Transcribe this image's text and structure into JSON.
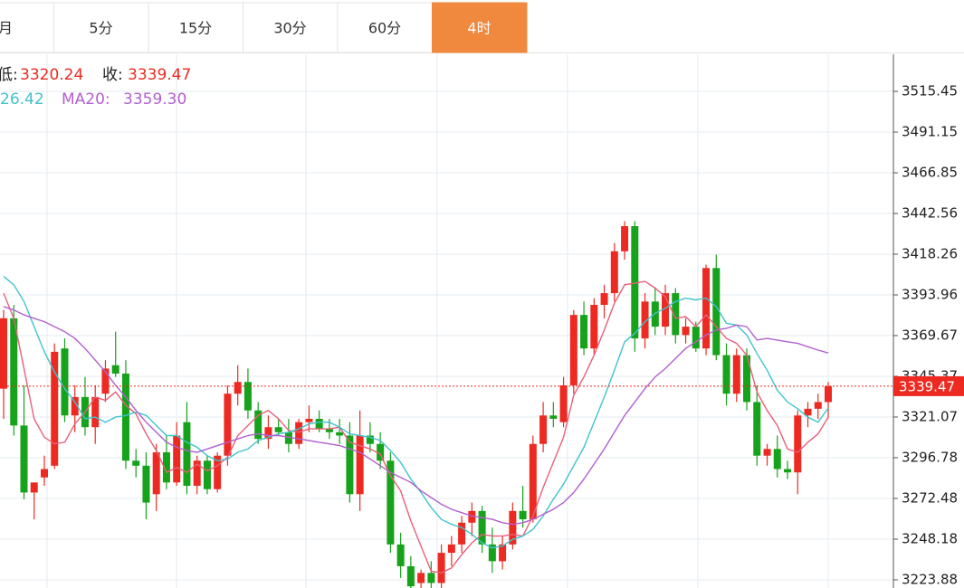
{
  "tabs": [
    "月",
    "5分",
    "15分",
    "30分",
    "60分",
    "4时"
  ],
  "active_tab": 5,
  "info": [
    {
      "label": "低:"
    },
    {
      "label": "收:"
    }
  ],
  "chart_data": {
    "type": "candlestick",
    "up_color": "#ec2a22",
    "down_color": "#16a21a",
    "opens": [
      3338,
      3380,
      3316,
      3276,
      3285,
      3292,
      3362,
      3322,
      3333,
      3315,
      3335,
      3352,
      3347,
      3295,
      3292,
      3275,
      3300,
      3282,
      3318,
      3280,
      3295,
      3278,
      3298,
      3335,
      3342,
      3325,
      3308,
      3315,
      3312,
      3305,
      3318,
      3320,
      3314,
      3312,
      3310,
      3275,
      3310,
      3305,
      3295,
      3245,
      3232,
      3222,
      3228,
      3222,
      3240,
      3245,
      3258,
      3265,
      3245,
      3235,
      3245,
      3265,
      3260,
      3305,
      3322,
      3318,
      3340,
      3382,
      3362,
      3388,
      3395,
      3420,
      3435,
      3368,
      3390,
      3375,
      3395,
      3370,
      3375,
      3362,
      3410,
      3358,
      3335,
      3358,
      3330,
      3298,
      3302,
      3290,
      3288,
      3322,
      3326,
      3330
    ],
    "highs": [
      3385,
      3388,
      3340,
      3282,
      3298,
      3365,
      3368,
      3340,
      3345,
      3340,
      3355,
      3372,
      3355,
      3302,
      3300,
      3305,
      3310,
      3318,
      3330,
      3298,
      3298,
      3300,
      3340,
      3352,
      3350,
      3330,
      3322,
      3320,
      3320,
      3320,
      3328,
      3325,
      3320,
      3320,
      3318,
      3325,
      3318,
      3312,
      3300,
      3252,
      3238,
      3230,
      3235,
      3245,
      3250,
      3262,
      3270,
      3268,
      3255,
      3250,
      3270,
      3280,
      3310,
      3330,
      3330,
      3345,
      3385,
      3390,
      3392,
      3400,
      3425,
      3438,
      3438,
      3395,
      3398,
      3400,
      3398,
      3380,
      3378,
      3412,
      3418,
      3365,
      3362,
      3362,
      3340,
      3305,
      3310,
      3295,
      3325,
      3330,
      3335,
      3342
    ],
    "lows": [
      3320,
      3310,
      3272,
      3260,
      3280,
      3290,
      3318,
      3312,
      3310,
      3305,
      3330,
      3345,
      3290,
      3285,
      3260,
      3265,
      3278,
      3280,
      3275,
      3275,
      3275,
      3276,
      3292,
      3328,
      3320,
      3305,
      3302,
      3310,
      3300,
      3302,
      3312,
      3312,
      3308,
      3305,
      3270,
      3265,
      3300,
      3290,
      3240,
      3225,
      3215,
      3215,
      3215,
      3218,
      3232,
      3240,
      3250,
      3240,
      3228,
      3230,
      3242,
      3255,
      3258,
      3300,
      3315,
      3315,
      3335,
      3358,
      3358,
      3380,
      3390,
      3415,
      3360,
      3362,
      3370,
      3370,
      3365,
      3365,
      3360,
      3358,
      3355,
      3328,
      3330,
      3325,
      3292,
      3292,
      3285,
      3284,
      3275,
      3315,
      3320,
      3320.24
    ],
    "closes": [
      3380,
      3316,
      3276,
      3282,
      3290,
      3360,
      3322,
      3333,
      3315,
      3333,
      3350,
      3347,
      3295,
      3292,
      3270,
      3300,
      3282,
      3310,
      3280,
      3295,
      3278,
      3298,
      3335,
      3342,
      3325,
      3308,
      3315,
      3312,
      3305,
      3318,
      3320,
      3314,
      3312,
      3310,
      3275,
      3310,
      3305,
      3295,
      3245,
      3232,
      3220,
      3228,
      3222,
      3240,
      3245,
      3258,
      3265,
      3245,
      3235,
      3245,
      3265,
      3260,
      3305,
      3322,
      3320,
      3340,
      3382,
      3362,
      3388,
      3395,
      3420,
      3435,
      3368,
      3390,
      3375,
      3395,
      3370,
      3375,
      3362,
      3410,
      3358,
      3335,
      3358,
      3330,
      3298,
      3302,
      3290,
      3288,
      3322,
      3326,
      3330,
      3339.47
    ],
    "series": [
      {
        "color": "#e8607a",
        "values": [
          3395,
          3380,
          3350,
          3320,
          3309,
          3305,
          3306,
          3317,
          3324,
          3333,
          3331,
          3336,
          3328,
          3323,
          3311,
          3301,
          3288,
          3291,
          3288,
          3293,
          3289,
          3292,
          3297,
          3310,
          3316,
          3322,
          3325,
          3320,
          3313,
          3312,
          3314,
          3314,
          3314,
          3315,
          3306,
          3304,
          3302,
          3299,
          3286,
          3277,
          3259,
          3244,
          3229,
          3228,
          3231,
          3239,
          3246,
          3251,
          3250,
          3250,
          3251,
          3250,
          3262,
          3279,
          3294,
          3309,
          3334,
          3345,
          3358,
          3373,
          3389,
          3400,
          3401,
          3402,
          3398,
          3393,
          3380,
          3381,
          3375,
          3382,
          3375,
          3368,
          3365,
          3358,
          3336,
          3325,
          3316,
          3302,
          3300,
          3306,
          3311,
          3321
        ]
      },
      {
        "color": "#3fc3cc",
        "value_label": "26.42",
        "values": [
          3405,
          3400,
          3390,
          3375,
          3360,
          3348,
          3338,
          3330,
          3320,
          3321,
          3318,
          3321,
          3322,
          3324,
          3322,
          3316,
          3310,
          3310,
          3306,
          3303,
          3298,
          3295,
          3296,
          3300,
          3302,
          3307,
          3309,
          3311,
          3312,
          3314,
          3317,
          3318,
          3318,
          3315,
          3311,
          3310,
          3309,
          3307,
          3301,
          3294,
          3284,
          3276,
          3267,
          3260,
          3257,
          3255,
          3251,
          3246,
          3243,
          3244,
          3248,
          3250,
          3254,
          3262,
          3272,
          3281,
          3292,
          3303,
          3318,
          3333,
          3349,
          3366,
          3371,
          3378,
          3383,
          3386,
          3390,
          3392,
          3391,
          3392,
          3387,
          3377,
          3376,
          3370,
          3359,
          3349,
          3337,
          3330,
          3326,
          3321,
          3318,
          3326.42
        ]
      },
      {
        "name": "MA20:",
        "color": "#b25fcf",
        "value_label": "3359.30",
        "values": [
          3387,
          3385,
          3382,
          3380,
          3378,
          3375,
          3372,
          3368,
          3362,
          3355,
          3348,
          3340,
          3333,
          3325,
          3318,
          3312,
          3306,
          3303,
          3301,
          3300,
          3302,
          3304,
          3306,
          3308,
          3310,
          3311,
          3310,
          3310,
          3309,
          3308,
          3307,
          3306,
          3305,
          3304,
          3302,
          3300,
          3296,
          3292,
          3288,
          3285,
          3282,
          3277,
          3273,
          3269,
          3266,
          3264,
          3262,
          3261,
          3260,
          3258,
          3257,
          3258,
          3260,
          3263,
          3266,
          3270,
          3276,
          3284,
          3293,
          3302,
          3312,
          3322,
          3330,
          3338,
          3345,
          3350,
          3356,
          3362,
          3366,
          3370,
          3373,
          3374,
          3376,
          3375,
          3367,
          3368,
          3367,
          3366,
          3365,
          3363,
          3361,
          3359.3
        ]
      }
    ],
    "ylim": [
      3219.0,
      3537.6
    ],
    "yticks": [
      3223.88,
      3248.18,
      3272.48,
      3296.78,
      3321.07,
      3345.37,
      3369.67,
      3393.96,
      3418.26,
      3442.56,
      3466.85,
      3491.15,
      3515.45
    ],
    "grid": true
  }
}
